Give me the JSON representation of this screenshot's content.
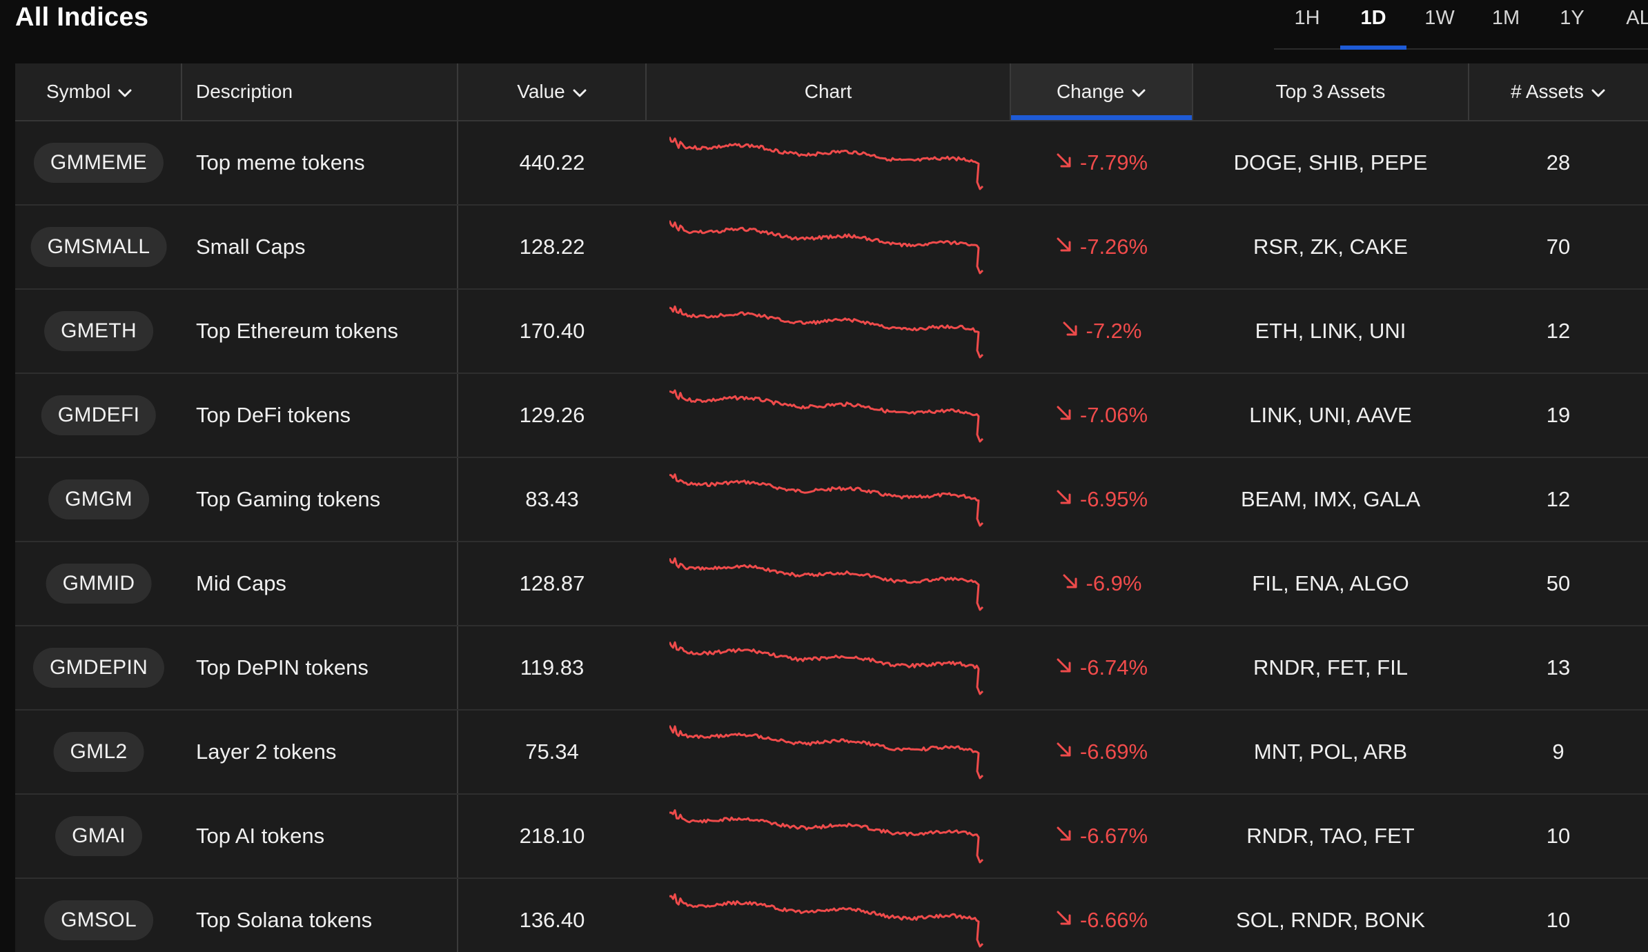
{
  "page": {
    "title": "All Indices"
  },
  "timeframes": [
    {
      "label": "1H",
      "active": false
    },
    {
      "label": "1D",
      "active": true
    },
    {
      "label": "1W",
      "active": false
    },
    {
      "label": "1M",
      "active": false
    },
    {
      "label": "1Y",
      "active": false
    },
    {
      "label": "AL",
      "active": false
    }
  ],
  "columns": {
    "symbol": "Symbol",
    "description": "Description",
    "value": "Value",
    "chart": "Chart",
    "change": "Change",
    "top_assets": "Top 3 Assets",
    "num_assets": "# Assets"
  },
  "sorted_column": "change",
  "colors": {
    "accent": "#1e5bd6",
    "negative": "#ef4b4b"
  },
  "rows": [
    {
      "symbol": "GMMEME",
      "description": "Top meme tokens",
      "value": "440.22",
      "change": "-7.79%",
      "top_assets": "DOGE, SHIB, PEPE",
      "num_assets": "28"
    },
    {
      "symbol": "GMSMALL",
      "description": "Small Caps",
      "value": "128.22",
      "change": "-7.26%",
      "top_assets": "RSR, ZK, CAKE",
      "num_assets": "70"
    },
    {
      "symbol": "GMETH",
      "description": "Top Ethereum tokens",
      "value": "170.40",
      "change": "-7.2%",
      "top_assets": "ETH, LINK, UNI",
      "num_assets": "12"
    },
    {
      "symbol": "GMDEFI",
      "description": "Top DeFi tokens",
      "value": "129.26",
      "change": "-7.06%",
      "top_assets": "LINK, UNI, AAVE",
      "num_assets": "19"
    },
    {
      "symbol": "GMGM",
      "description": "Top Gaming tokens",
      "value": "83.43",
      "change": "-6.95%",
      "top_assets": "BEAM, IMX, GALA",
      "num_assets": "12"
    },
    {
      "symbol": "GMMID",
      "description": "Mid Caps",
      "value": "128.87",
      "change": "-6.9%",
      "top_assets": "FIL, ENA, ALGO",
      "num_assets": "50"
    },
    {
      "symbol": "GMDEPIN",
      "description": "Top DePIN tokens",
      "value": "119.83",
      "change": "-6.74%",
      "top_assets": "RNDR, FET, FIL",
      "num_assets": "13"
    },
    {
      "symbol": "GML2",
      "description": "Layer 2 tokens",
      "value": "75.34",
      "change": "-6.69%",
      "top_assets": "MNT, POL, ARB",
      "num_assets": "9"
    },
    {
      "symbol": "GMAI",
      "description": "Top AI tokens",
      "value": "218.10",
      "change": "-6.67%",
      "top_assets": "RNDR, TAO, FET",
      "num_assets": "10"
    },
    {
      "symbol": "GMSOL",
      "description": "Top Solana tokens",
      "value": "136.40",
      "change": "-6.66%",
      "top_assets": "SOL, RNDR, BONK",
      "num_assets": "10"
    }
  ]
}
